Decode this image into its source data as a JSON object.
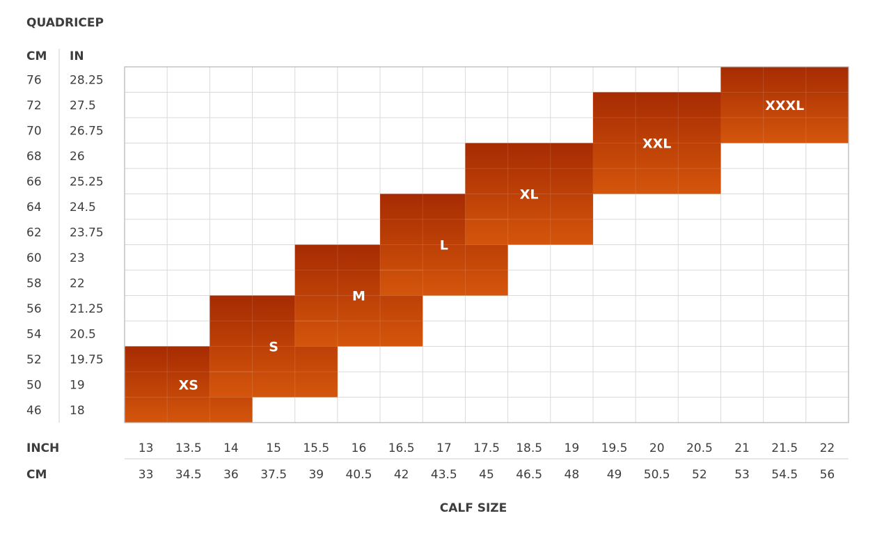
{
  "chart_data": {
    "type": "heatmap",
    "y_title": "QUADRICEP",
    "y_unit_labels": [
      "CM",
      "IN"
    ],
    "x_title": "CALF SIZE",
    "x_row_labels": [
      "INCH",
      "CM"
    ],
    "y_rows_top_to_bottom": [
      {
        "cm": "76",
        "in": "28.25"
      },
      {
        "cm": "72",
        "in": "27.5"
      },
      {
        "cm": "70",
        "in": "26.75"
      },
      {
        "cm": "68",
        "in": "26"
      },
      {
        "cm": "66",
        "in": "25.25"
      },
      {
        "cm": "64",
        "in": "24.5"
      },
      {
        "cm": "62",
        "in": "23.75"
      },
      {
        "cm": "60",
        "in": "23"
      },
      {
        "cm": "58",
        "in": "22"
      },
      {
        "cm": "56",
        "in": "21.25"
      },
      {
        "cm": "54",
        "in": "20.5"
      },
      {
        "cm": "52",
        "in": "19.75"
      },
      {
        "cm": "50",
        "in": "19"
      },
      {
        "cm": "46",
        "in": "18"
      }
    ],
    "x_columns": [
      {
        "inch": "13",
        "cm": "33"
      },
      {
        "inch": "13.5",
        "cm": "34.5"
      },
      {
        "inch": "14",
        "cm": "36"
      },
      {
        "inch": "15",
        "cm": "37.5"
      },
      {
        "inch": "15.5",
        "cm": "39"
      },
      {
        "inch": "16",
        "cm": "40.5"
      },
      {
        "inch": "16.5",
        "cm": "42"
      },
      {
        "inch": "17",
        "cm": "43.5"
      },
      {
        "inch": "17.5",
        "cm": "45"
      },
      {
        "inch": "18.5",
        "cm": "46.5"
      },
      {
        "inch": "19",
        "cm": "48"
      },
      {
        "inch": "19.5",
        "cm": "49"
      },
      {
        "inch": "20",
        "cm": "50.5"
      },
      {
        "inch": "20.5",
        "cm": "52"
      },
      {
        "inch": "21",
        "cm": "53"
      },
      {
        "inch": "21.5",
        "cm": "54.5"
      },
      {
        "inch": "22",
        "cm": "56"
      }
    ],
    "sizes": [
      {
        "label": "XS",
        "calf_in": [
          "13",
          "14"
        ],
        "quad_cm": [
          "46",
          "52"
        ]
      },
      {
        "label": "S",
        "calf_in": [
          "14",
          "15.5"
        ],
        "quad_cm": [
          "50",
          "56"
        ]
      },
      {
        "label": "M",
        "calf_in": [
          "15.5",
          "16.5"
        ],
        "quad_cm": [
          "54",
          "60"
        ]
      },
      {
        "label": "L",
        "calf_in": [
          "16.5",
          "17.5"
        ],
        "quad_cm": [
          "58",
          "64"
        ]
      },
      {
        "label": "XL",
        "calf_in": [
          "17.5",
          "19"
        ],
        "quad_cm": [
          "62",
          "68"
        ]
      },
      {
        "label": "XXL",
        "calf_in": [
          "19.5",
          "20.5"
        ],
        "quad_cm": [
          "66",
          "72"
        ]
      },
      {
        "label": "XXXL",
        "calf_in": [
          "21",
          "22"
        ],
        "quad_cm": [
          "70",
          "76"
        ]
      }
    ],
    "colors": {
      "block_top": "#a62b02",
      "block_bottom": "#d4560c",
      "grid": "#d9d9d9",
      "border": "#b5b5b5",
      "label_text": "#ffffff",
      "axis_text": "#3d3d3d"
    }
  }
}
